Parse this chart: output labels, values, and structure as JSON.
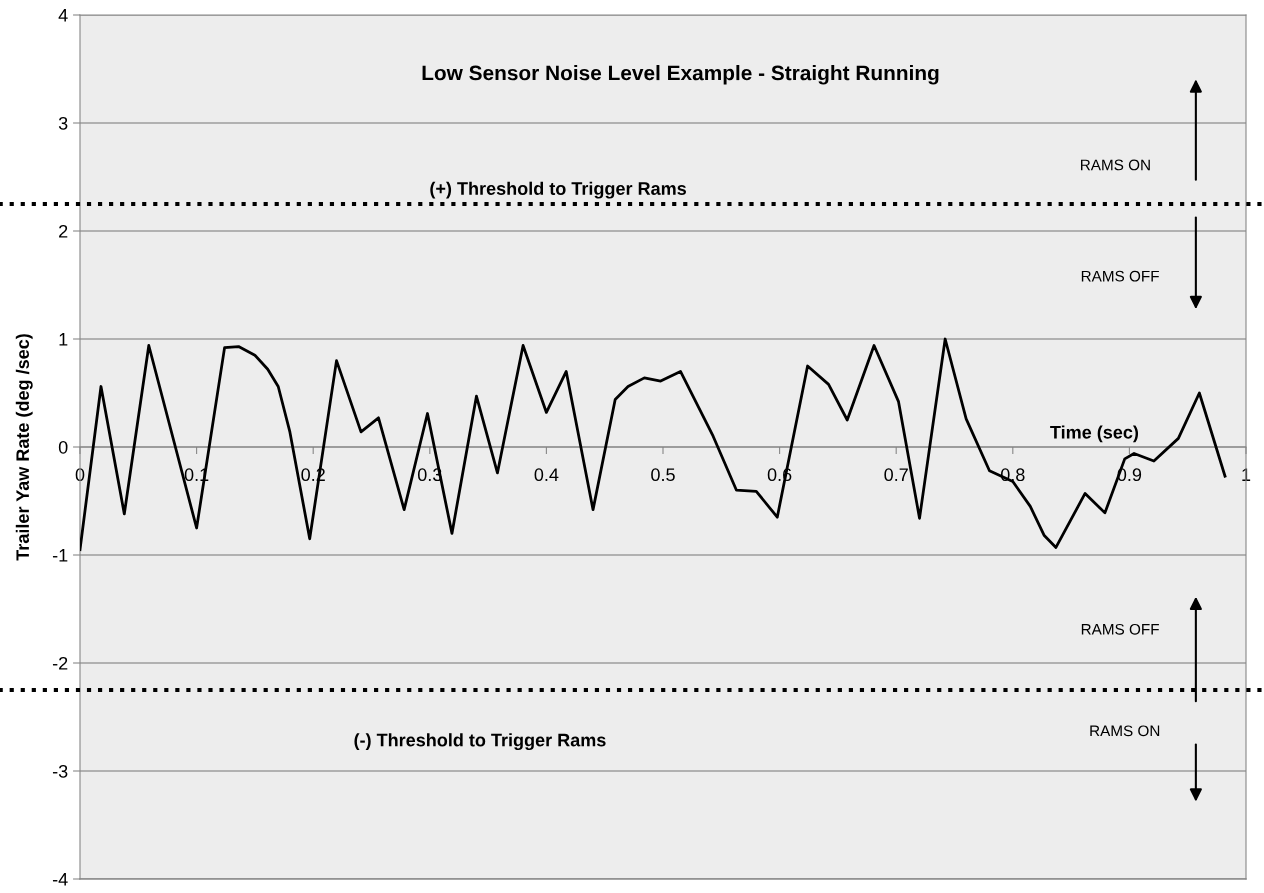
{
  "chart_data": {
    "type": "line",
    "title": "Low Sensor Noise Level Example - Straight Running",
    "xlabel": "Time (sec)",
    "ylabel": "Trailer Yaw Rate (deg /sec)",
    "series": [
      {
        "color": "#000000",
        "x": [
          0,
          0.018,
          0.038,
          0.059,
          0.1,
          0.124,
          0.136,
          0.15,
          0.161,
          0.17,
          0.18,
          0.197,
          0.22,
          0.241,
          0.256,
          0.278,
          0.298,
          0.319,
          0.34,
          0.358,
          0.38,
          0.4,
          0.417,
          0.44,
          0.459,
          0.47,
          0.484,
          0.498,
          0.515,
          0.543,
          0.553,
          0.563,
          0.58,
          0.598,
          0.624,
          0.642,
          0.658,
          0.681,
          0.702,
          0.72,
          0.742,
          0.76,
          0.78,
          0.8,
          0.815,
          0.827,
          0.837,
          0.862,
          0.879,
          0.896,
          0.904,
          0.921,
          0.942,
          0.96,
          0.982
        ],
        "values": [
          -0.95,
          0.56,
          -0.62,
          0.94,
          -0.75,
          0.92,
          0.93,
          0.85,
          0.72,
          0.56,
          0.14,
          -0.85,
          0.8,
          0.14,
          0.27,
          -0.58,
          0.31,
          -0.8,
          0.47,
          -0.24,
          0.94,
          0.32,
          0.7,
          -0.58,
          0.44,
          0.56,
          0.64,
          0.61,
          0.7,
          0.1,
          -0.15,
          -0.4,
          -0.41,
          -0.65,
          0.75,
          0.58,
          0.25,
          0.94,
          0.42,
          -0.66,
          1.0,
          0.26,
          -0.22,
          -0.32,
          -0.55,
          -0.82,
          -0.93,
          -0.43,
          -0.61,
          -0.11,
          -0.06,
          -0.13,
          0.08,
          0.5,
          -0.27
        ]
      }
    ],
    "xlim": [
      0,
      1
    ],
    "xticks": [
      0,
      0.1,
      0.2,
      0.3,
      0.4,
      0.5,
      0.6,
      0.7,
      0.8,
      0.9,
      1
    ],
    "ylim": [
      -4,
      4
    ],
    "yticks": [
      -4,
      -3,
      -2,
      -1,
      0,
      1,
      2,
      3,
      4
    ],
    "grid": "y",
    "marker": "none",
    "line_style": "solid",
    "ref_lines": [
      {
        "axis": "y",
        "value": 2.25,
        "label": "(+) Threshold to Trigger Rams",
        "color": "#000000",
        "line_style": "dotted"
      },
      {
        "axis": "y",
        "value": -2.25,
        "label": "(-) Threshold to Trigger Rams",
        "color": "#000000",
        "line_style": "dotted"
      }
    ],
    "annotations": [
      "RAMS ON",
      "RAMS OFF",
      "RAMS OFF",
      "RAMS ON"
    ]
  }
}
